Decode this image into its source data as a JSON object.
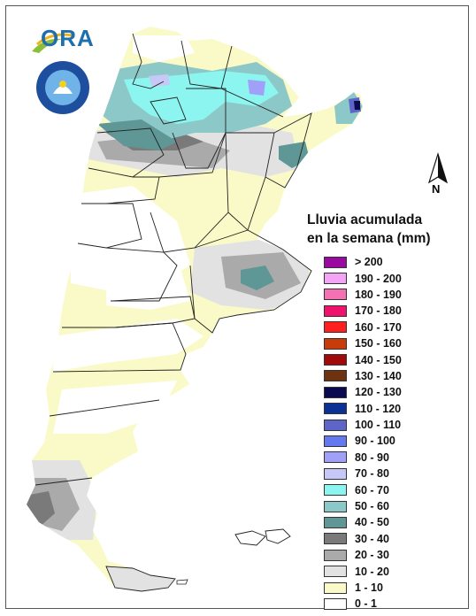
{
  "map": {
    "title_line1": "Lluvia acumulada",
    "title_line2": "en la semana (mm)",
    "north_label": "N",
    "logo_text": "ORA",
    "legend": [
      {
        "label": "> 200",
        "color": "#9b0aa0"
      },
      {
        "label": "190 - 200",
        "color": "#f4a4f4"
      },
      {
        "label": "180 - 190",
        "color": "#f471b4"
      },
      {
        "label": "170 - 180",
        "color": "#f0126e"
      },
      {
        "label": "160 - 170",
        "color": "#ff1f1f"
      },
      {
        "label": "150 - 160",
        "color": "#c83c0a"
      },
      {
        "label": "140 - 150",
        "color": "#a00a0a"
      },
      {
        "label": "130 - 140",
        "color": "#6e3210"
      },
      {
        "label": "120 - 130",
        "color": "#0a0a50"
      },
      {
        "label": "110 - 120",
        "color": "#0a3296"
      },
      {
        "label": "100 - 110",
        "color": "#5f64c8"
      },
      {
        "label": "90 - 100",
        "color": "#6478f0"
      },
      {
        "label": "80 - 90",
        "color": "#a0a0f8"
      },
      {
        "label": "70 - 80",
        "color": "#c8c8f8"
      },
      {
        "label": "60 - 70",
        "color": "#8cf5f0"
      },
      {
        "label": "50 - 60",
        "color": "#8cc8c8"
      },
      {
        "label": "40 - 50",
        "color": "#5f9696"
      },
      {
        "label": "30 - 40",
        "color": "#7a7a7a"
      },
      {
        "label": "20 - 30",
        "color": "#aaaaaa"
      },
      {
        "label": "10 - 20",
        "color": "#e2e2e2"
      },
      {
        "label": "1 - 10",
        "color": "#fafac8"
      },
      {
        "label": "0 - 1",
        "color": "#ffffff"
      }
    ]
  }
}
